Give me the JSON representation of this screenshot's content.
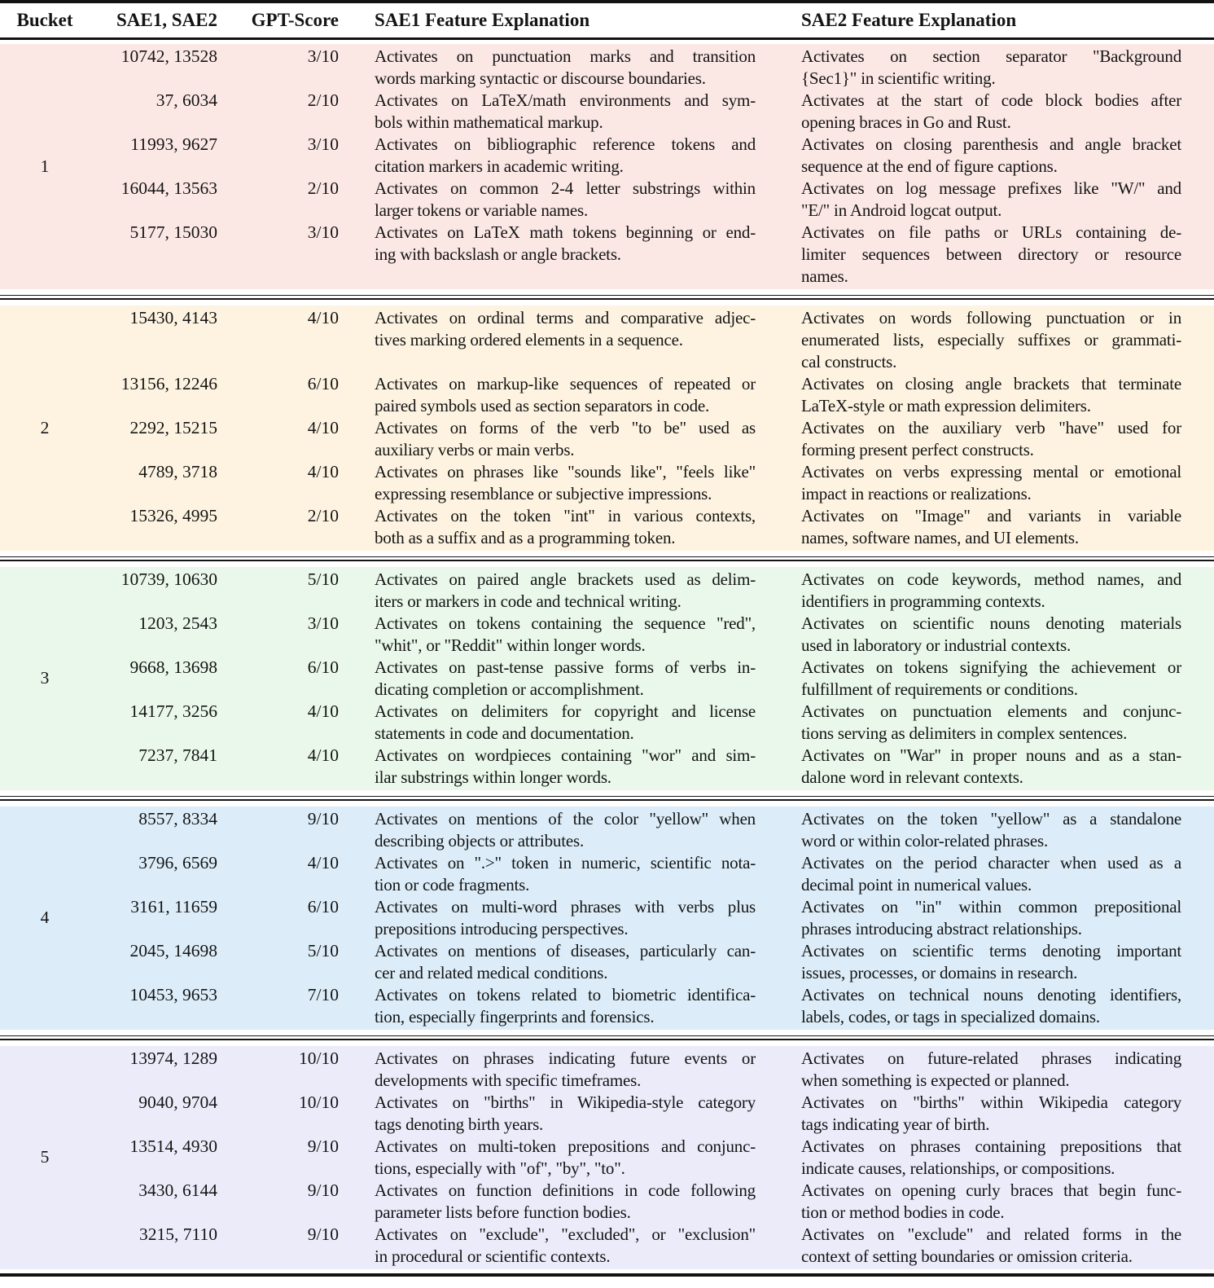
{
  "table": {
    "headers": {
      "bucket": "Bucket",
      "sae_pair": "SAE1, SAE2",
      "gpt_score": "GPT-Score",
      "sae1_expl": "SAE1 Feature Explanation",
      "sae2_expl": "SAE2 Feature Explanation"
    },
    "buckets": [
      {
        "bucket": "1",
        "color": "#fbe8e5",
        "rows": [
          {
            "ids": "10742, 13528",
            "score": "3/10",
            "sae1_lines": [
              "Activates on punctuation marks and transition",
              "words marking syntactic or discourse boundaries."
            ],
            "sae2_lines": [
              "Activates on section separator \"Background",
              "{Sec1}\" in scientific writing."
            ]
          },
          {
            "ids": "37, 6034",
            "score": "2/10",
            "sae1_lines": [
              "Activates on LaTeX/math environments and sym-",
              "bols within mathematical markup."
            ],
            "sae2_lines": [
              "Activates at the start of code block bodies after",
              "opening braces in Go and Rust."
            ]
          },
          {
            "ids": "11993, 9627",
            "score": "3/10",
            "sae1_lines": [
              "Activates on bibliographic reference tokens and",
              "citation markers in academic writing."
            ],
            "sae2_lines": [
              "Activates on closing parenthesis and angle bracket",
              "sequence at the end of figure captions."
            ]
          },
          {
            "ids": "16044, 13563",
            "score": "2/10",
            "sae1_lines": [
              "Activates on common 2-4 letter substrings within",
              "larger tokens or variable names."
            ],
            "sae2_lines": [
              "Activates on log message prefixes like \"W/\" and",
              "\"E/\" in Android logcat output."
            ]
          },
          {
            "ids": "5177, 15030",
            "score": "3/10",
            "sae1_lines": [
              "Activates on LaTeX math tokens beginning or end-",
              "ing with backslash or angle brackets."
            ],
            "sae2_lines": [
              "Activates on file paths or URLs containing de-",
              "limiter sequences between directory or resource",
              "names."
            ]
          }
        ]
      },
      {
        "bucket": "2",
        "color": "#fdf3e0",
        "rows": [
          {
            "ids": "15430, 4143",
            "score": "4/10",
            "sae1_lines": [
              "Activates on ordinal terms and comparative adjec-",
              "tives marking ordered elements in a sequence."
            ],
            "sae2_lines": [
              "Activates on words following punctuation or in",
              "enumerated lists, especially suffixes or grammati-",
              "cal constructs."
            ]
          },
          {
            "ids": "13156, 12246",
            "score": "6/10",
            "sae1_lines": [
              "Activates on markup-like sequences of repeated or",
              "paired symbols used as section separators in code."
            ],
            "sae2_lines": [
              "Activates on closing angle brackets that terminate",
              "LaTeX-style or math expression delimiters."
            ]
          },
          {
            "ids": "2292, 15215",
            "score": "4/10",
            "sae1_lines": [
              "Activates on forms of the verb \"to be\" used as",
              "auxiliary verbs or main verbs."
            ],
            "sae2_lines": [
              "Activates on the auxiliary verb \"have\" used for",
              "forming present perfect constructs."
            ]
          },
          {
            "ids": "4789, 3718",
            "score": "4/10",
            "sae1_lines": [
              "Activates on phrases like \"sounds like\", \"feels like\"",
              "expressing resemblance or subjective impressions."
            ],
            "sae2_lines": [
              "Activates on verbs expressing mental or emotional",
              "impact in reactions or realizations."
            ]
          },
          {
            "ids": "15326, 4995",
            "score": "2/10",
            "sae1_lines": [
              "Activates on the token \"int\" in various contexts,",
              "both as a suffix and as a programming token."
            ],
            "sae2_lines": [
              "Activates on \"Image\" and variants in variable",
              "names, software names, and UI elements."
            ]
          }
        ]
      },
      {
        "bucket": "3",
        "color": "#e9f8ea",
        "rows": [
          {
            "ids": "10739, 10630",
            "score": "5/10",
            "sae1_lines": [
              "Activates on paired angle brackets used as delim-",
              "iters or markers in code and technical writing."
            ],
            "sae2_lines": [
              "Activates on code keywords, method names, and",
              "identifiers in programming contexts."
            ]
          },
          {
            "ids": "1203, 2543",
            "score": "3/10",
            "sae1_lines": [
              "Activates on tokens containing the sequence \"red\",",
              "\"whit\", or \"Reddit\" within longer words."
            ],
            "sae2_lines": [
              "Activates on scientific nouns denoting materials",
              "used in laboratory or industrial contexts."
            ]
          },
          {
            "ids": "9668, 13698",
            "score": "6/10",
            "sae1_lines": [
              "Activates on past-tense passive forms of verbs in-",
              "dicating completion or accomplishment."
            ],
            "sae2_lines": [
              "Activates on tokens signifying the achievement or",
              "fulfillment of requirements or conditions."
            ]
          },
          {
            "ids": "14177, 3256",
            "score": "4/10",
            "sae1_lines": [
              "Activates on delimiters for copyright and license",
              "statements in code and documentation."
            ],
            "sae2_lines": [
              "Activates on punctuation elements and conjunc-",
              "tions serving as delimiters in complex sentences."
            ]
          },
          {
            "ids": "7237, 7841",
            "score": "4/10",
            "sae1_lines": [
              "Activates on wordpieces containing \"wor\" and sim-",
              "ilar substrings within longer words."
            ],
            "sae2_lines": [
              "Activates on \"War\" in proper nouns and as a stan-",
              "dalone word in relevant contexts."
            ]
          }
        ]
      },
      {
        "bucket": "4",
        "color": "#dcedf9",
        "rows": [
          {
            "ids": "8557, 8334",
            "score": "9/10",
            "sae1_lines": [
              "Activates on mentions of the color \"yellow\" when",
              "describing objects or attributes."
            ],
            "sae2_lines": [
              "Activates on the token \"yellow\" as a standalone",
              "word or within color-related phrases."
            ]
          },
          {
            "ids": "3796, 6569",
            "score": "4/10",
            "sae1_lines": [
              "Activates on \".>\" token in numeric, scientific nota-",
              "tion or code fragments."
            ],
            "sae2_lines": [
              "Activates on the period character when used as a",
              "decimal point in numerical values."
            ]
          },
          {
            "ids": "3161, 11659",
            "score": "6/10",
            "sae1_lines": [
              "Activates on multi-word phrases with verbs plus",
              "prepositions introducing perspectives."
            ],
            "sae2_lines": [
              "Activates on \"in\" within common prepositional",
              "phrases introducing abstract relationships."
            ]
          },
          {
            "ids": "2045, 14698",
            "score": "5/10",
            "sae1_lines": [
              "Activates on mentions of diseases, particularly can-",
              "cer and related medical conditions."
            ],
            "sae2_lines": [
              "Activates on scientific terms denoting important",
              "issues, processes, or domains in research."
            ]
          },
          {
            "ids": "10453, 9653",
            "score": "7/10",
            "sae1_lines": [
              "Activates on tokens related to biometric identifica-",
              "tion, especially fingerprints and forensics."
            ],
            "sae2_lines": [
              "Activates on technical nouns denoting identifiers,",
              "labels, codes, or tags in specialized domains."
            ]
          }
        ]
      },
      {
        "bucket": "5",
        "color": "#ecebfa",
        "rows": [
          {
            "ids": "13974, 1289",
            "score": "10/10",
            "sae1_lines": [
              "Activates on phrases indicating future events or",
              "developments with specific timeframes."
            ],
            "sae2_lines": [
              "Activates on future-related phrases indicating",
              "when something is expected or planned."
            ]
          },
          {
            "ids": "9040, 9704",
            "score": "10/10",
            "sae1_lines": [
              "Activates on \"births\" in Wikipedia-style category",
              "tags denoting birth years."
            ],
            "sae2_lines": [
              "Activates on \"births\" within Wikipedia category",
              "tags indicating year of birth."
            ]
          },
          {
            "ids": "13514, 4930",
            "score": "9/10",
            "sae1_lines": [
              "Activates on multi-token prepositions and conjunc-",
              "tions, especially with \"of\", \"by\", \"to\"."
            ],
            "sae2_lines": [
              "Activates on phrases containing prepositions that",
              "indicate causes, relationships, or compositions."
            ]
          },
          {
            "ids": "3430, 6144",
            "score": "9/10",
            "sae1_lines": [
              "Activates on function definitions in code following",
              "parameter lists before function bodies."
            ],
            "sae2_lines": [
              "Activates on opening curly braces that begin func-",
              "tion or method bodies in code."
            ]
          },
          {
            "ids": "3215, 7110",
            "score": "9/10",
            "sae1_lines": [
              "Activates on \"exclude\", \"excluded\", or \"exclusion\"",
              "in procedural or scientific contexts."
            ],
            "sae2_lines": [
              "Activates on \"exclude\" and related forms in the",
              "context of setting boundaries or omission criteria."
            ]
          }
        ]
      }
    ]
  }
}
